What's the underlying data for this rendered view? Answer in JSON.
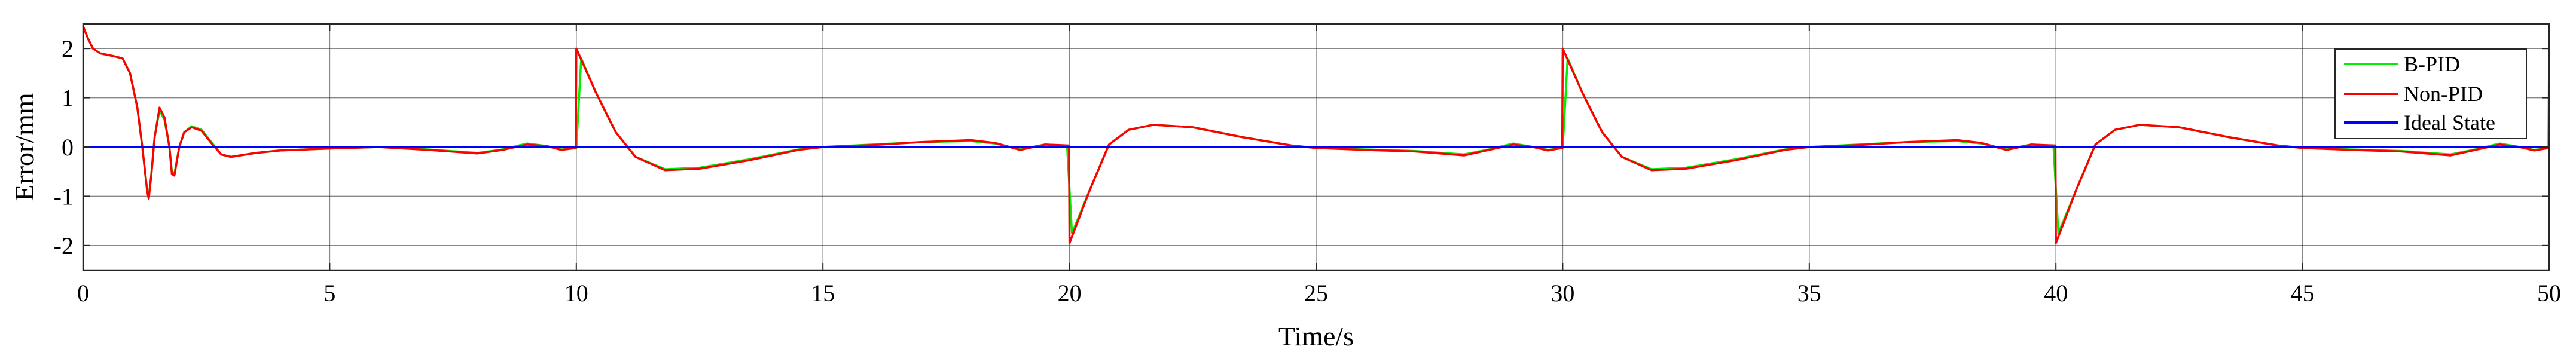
{
  "chart_data": {
    "type": "line",
    "title": "",
    "xlabel": "Time/s",
    "ylabel": "Error/mm",
    "xlim": [
      0,
      50
    ],
    "ylim": [
      -2.5,
      2.5
    ],
    "xticks": [
      0,
      5,
      10,
      15,
      20,
      25,
      30,
      35,
      40,
      45,
      50
    ],
    "yticks": [
      -2,
      -1,
      0,
      1,
      2
    ],
    "grid": true,
    "legend_position": "top-right",
    "series": [
      {
        "name": "B-PID",
        "color": "#00ee00",
        "points": [
          [
            0,
            2.45
          ],
          [
            0.1,
            2.2
          ],
          [
            0.2,
            2.0
          ],
          [
            0.35,
            1.9
          ],
          [
            0.6,
            1.85
          ],
          [
            0.8,
            1.8
          ],
          [
            0.95,
            1.5
          ],
          [
            1.1,
            0.8
          ],
          [
            1.2,
            0.0
          ],
          [
            1.3,
            -0.9
          ],
          [
            1.33,
            -1.0
          ],
          [
            1.38,
            -0.6
          ],
          [
            1.45,
            0.2
          ],
          [
            1.55,
            0.75
          ],
          [
            1.65,
            0.55
          ],
          [
            1.75,
            0.0
          ],
          [
            1.8,
            -0.5
          ],
          [
            1.85,
            -0.55
          ],
          [
            1.95,
            0.0
          ],
          [
            2.05,
            0.3
          ],
          [
            2.2,
            0.42
          ],
          [
            2.4,
            0.35
          ],
          [
            2.6,
            0.1
          ],
          [
            2.8,
            -0.15
          ],
          [
            3.0,
            -0.2
          ],
          [
            3.5,
            -0.12
          ],
          [
            4.0,
            -0.07
          ],
          [
            5,
            -0.03
          ],
          [
            6,
            0.0
          ],
          [
            7,
            -0.05
          ],
          [
            8,
            -0.12
          ],
          [
            8.5,
            -0.05
          ],
          [
            9,
            0.07
          ],
          [
            9.4,
            0.02
          ],
          [
            9.7,
            -0.05
          ],
          [
            10,
            -0.02
          ],
          [
            10.1,
            1.8
          ],
          [
            10.4,
            1.1
          ],
          [
            10.8,
            0.3
          ],
          [
            11.2,
            -0.2
          ],
          [
            11.8,
            -0.45
          ],
          [
            12.5,
            -0.42
          ],
          [
            13.5,
            -0.25
          ],
          [
            14.5,
            -0.05
          ],
          [
            15,
            0.0
          ],
          [
            16,
            0.05
          ],
          [
            17,
            0.1
          ],
          [
            18,
            0.12
          ],
          [
            18.5,
            0.07
          ],
          [
            19,
            -0.05
          ],
          [
            19.5,
            0.05
          ],
          [
            19.95,
            0.03
          ],
          [
            20.05,
            -1.75
          ],
          [
            20.4,
            -0.9
          ],
          [
            20.8,
            0.05
          ],
          [
            21.2,
            0.35
          ],
          [
            21.7,
            0.45
          ],
          [
            22.5,
            0.4
          ],
          [
            23.5,
            0.2
          ],
          [
            24.5,
            0.03
          ],
          [
            25,
            -0.02
          ],
          [
            26,
            -0.05
          ],
          [
            27,
            -0.08
          ],
          [
            28,
            -0.15
          ],
          [
            28.5,
            -0.05
          ],
          [
            29,
            0.07
          ],
          [
            29.4,
            0.0
          ],
          [
            29.7,
            -0.06
          ],
          [
            30,
            -0.02
          ],
          [
            30.1,
            1.8
          ],
          [
            30.4,
            1.1
          ],
          [
            30.8,
            0.3
          ],
          [
            31.2,
            -0.2
          ],
          [
            31.8,
            -0.45
          ],
          [
            32.5,
            -0.42
          ],
          [
            33.5,
            -0.25
          ],
          [
            34.5,
            -0.05
          ],
          [
            35,
            0.0
          ],
          [
            36,
            0.05
          ],
          [
            37,
            0.1
          ],
          [
            38,
            0.12
          ],
          [
            38.5,
            0.07
          ],
          [
            39,
            -0.05
          ],
          [
            39.5,
            0.05
          ],
          [
            39.95,
            0.03
          ],
          [
            40.05,
            -1.75
          ],
          [
            40.4,
            -0.9
          ],
          [
            40.8,
            0.05
          ],
          [
            41.2,
            0.35
          ],
          [
            41.7,
            0.45
          ],
          [
            42.5,
            0.4
          ],
          [
            43.5,
            0.2
          ],
          [
            44.5,
            0.03
          ],
          [
            45,
            -0.02
          ],
          [
            46,
            -0.05
          ],
          [
            47,
            -0.08
          ],
          [
            48,
            -0.15
          ],
          [
            48.5,
            -0.05
          ],
          [
            49,
            0.07
          ],
          [
            49.4,
            0.0
          ],
          [
            49.7,
            -0.06
          ],
          [
            50,
            -0.02
          ]
        ]
      },
      {
        "name": "Non-PID",
        "color": "#ff0000",
        "points": [
          [
            0,
            2.45
          ],
          [
            0.1,
            2.2
          ],
          [
            0.2,
            2.0
          ],
          [
            0.35,
            1.9
          ],
          [
            0.6,
            1.85
          ],
          [
            0.8,
            1.8
          ],
          [
            0.95,
            1.5
          ],
          [
            1.1,
            0.8
          ],
          [
            1.2,
            0.0
          ],
          [
            1.3,
            -0.9
          ],
          [
            1.33,
            -1.05
          ],
          [
            1.38,
            -0.6
          ],
          [
            1.45,
            0.2
          ],
          [
            1.55,
            0.8
          ],
          [
            1.65,
            0.6
          ],
          [
            1.75,
            0.0
          ],
          [
            1.8,
            -0.55
          ],
          [
            1.85,
            -0.58
          ],
          [
            1.95,
            0.0
          ],
          [
            2.05,
            0.3
          ],
          [
            2.2,
            0.4
          ],
          [
            2.4,
            0.33
          ],
          [
            2.6,
            0.08
          ],
          [
            2.8,
            -0.15
          ],
          [
            3.0,
            -0.2
          ],
          [
            3.5,
            -0.12
          ],
          [
            4.0,
            -0.07
          ],
          [
            5,
            -0.03
          ],
          [
            6,
            0.0
          ],
          [
            7,
            -0.06
          ],
          [
            8,
            -0.13
          ],
          [
            8.5,
            -0.06
          ],
          [
            9,
            0.05
          ],
          [
            9.4,
            0.02
          ],
          [
            9.7,
            -0.06
          ],
          [
            9.99,
            -0.02
          ],
          [
            10,
            2.0
          ],
          [
            10.4,
            1.1
          ],
          [
            10.8,
            0.3
          ],
          [
            11.2,
            -0.2
          ],
          [
            11.8,
            -0.47
          ],
          [
            12.5,
            -0.44
          ],
          [
            13.5,
            -0.27
          ],
          [
            14.5,
            -0.06
          ],
          [
            15,
            0.0
          ],
          [
            16,
            0.04
          ],
          [
            17,
            0.1
          ],
          [
            18,
            0.14
          ],
          [
            18.5,
            0.08
          ],
          [
            19,
            -0.06
          ],
          [
            19.5,
            0.05
          ],
          [
            19.99,
            0.03
          ],
          [
            20,
            -1.95
          ],
          [
            20.4,
            -0.9
          ],
          [
            20.8,
            0.05
          ],
          [
            21.2,
            0.35
          ],
          [
            21.7,
            0.45
          ],
          [
            22.5,
            0.4
          ],
          [
            23.5,
            0.2
          ],
          [
            24.5,
            0.03
          ],
          [
            25,
            -0.02
          ],
          [
            26,
            -0.06
          ],
          [
            27,
            -0.09
          ],
          [
            28,
            -0.17
          ],
          [
            28.5,
            -0.06
          ],
          [
            29,
            0.05
          ],
          [
            29.4,
            0.0
          ],
          [
            29.7,
            -0.07
          ],
          [
            29.99,
            -0.02
          ],
          [
            30,
            2.0
          ],
          [
            30.4,
            1.1
          ],
          [
            30.8,
            0.3
          ],
          [
            31.2,
            -0.2
          ],
          [
            31.8,
            -0.47
          ],
          [
            32.5,
            -0.44
          ],
          [
            33.5,
            -0.27
          ],
          [
            34.5,
            -0.06
          ],
          [
            35,
            0.0
          ],
          [
            36,
            0.04
          ],
          [
            37,
            0.1
          ],
          [
            38,
            0.14
          ],
          [
            38.5,
            0.08
          ],
          [
            39,
            -0.06
          ],
          [
            39.5,
            0.05
          ],
          [
            39.99,
            0.03
          ],
          [
            40,
            -1.95
          ],
          [
            40.4,
            -0.9
          ],
          [
            40.8,
            0.05
          ],
          [
            41.2,
            0.35
          ],
          [
            41.7,
            0.45
          ],
          [
            42.5,
            0.4
          ],
          [
            43.5,
            0.2
          ],
          [
            44.5,
            0.03
          ],
          [
            45,
            -0.02
          ],
          [
            46,
            -0.06
          ],
          [
            47,
            -0.09
          ],
          [
            48,
            -0.17
          ],
          [
            48.5,
            -0.06
          ],
          [
            49,
            0.05
          ],
          [
            49.4,
            0.0
          ],
          [
            49.7,
            -0.07
          ],
          [
            49.99,
            -0.02
          ],
          [
            50,
            2.0
          ]
        ]
      },
      {
        "name": "Ideal State",
        "color": "#0000ff",
        "points": [
          [
            0,
            0
          ],
          [
            50,
            0
          ]
        ]
      }
    ]
  }
}
